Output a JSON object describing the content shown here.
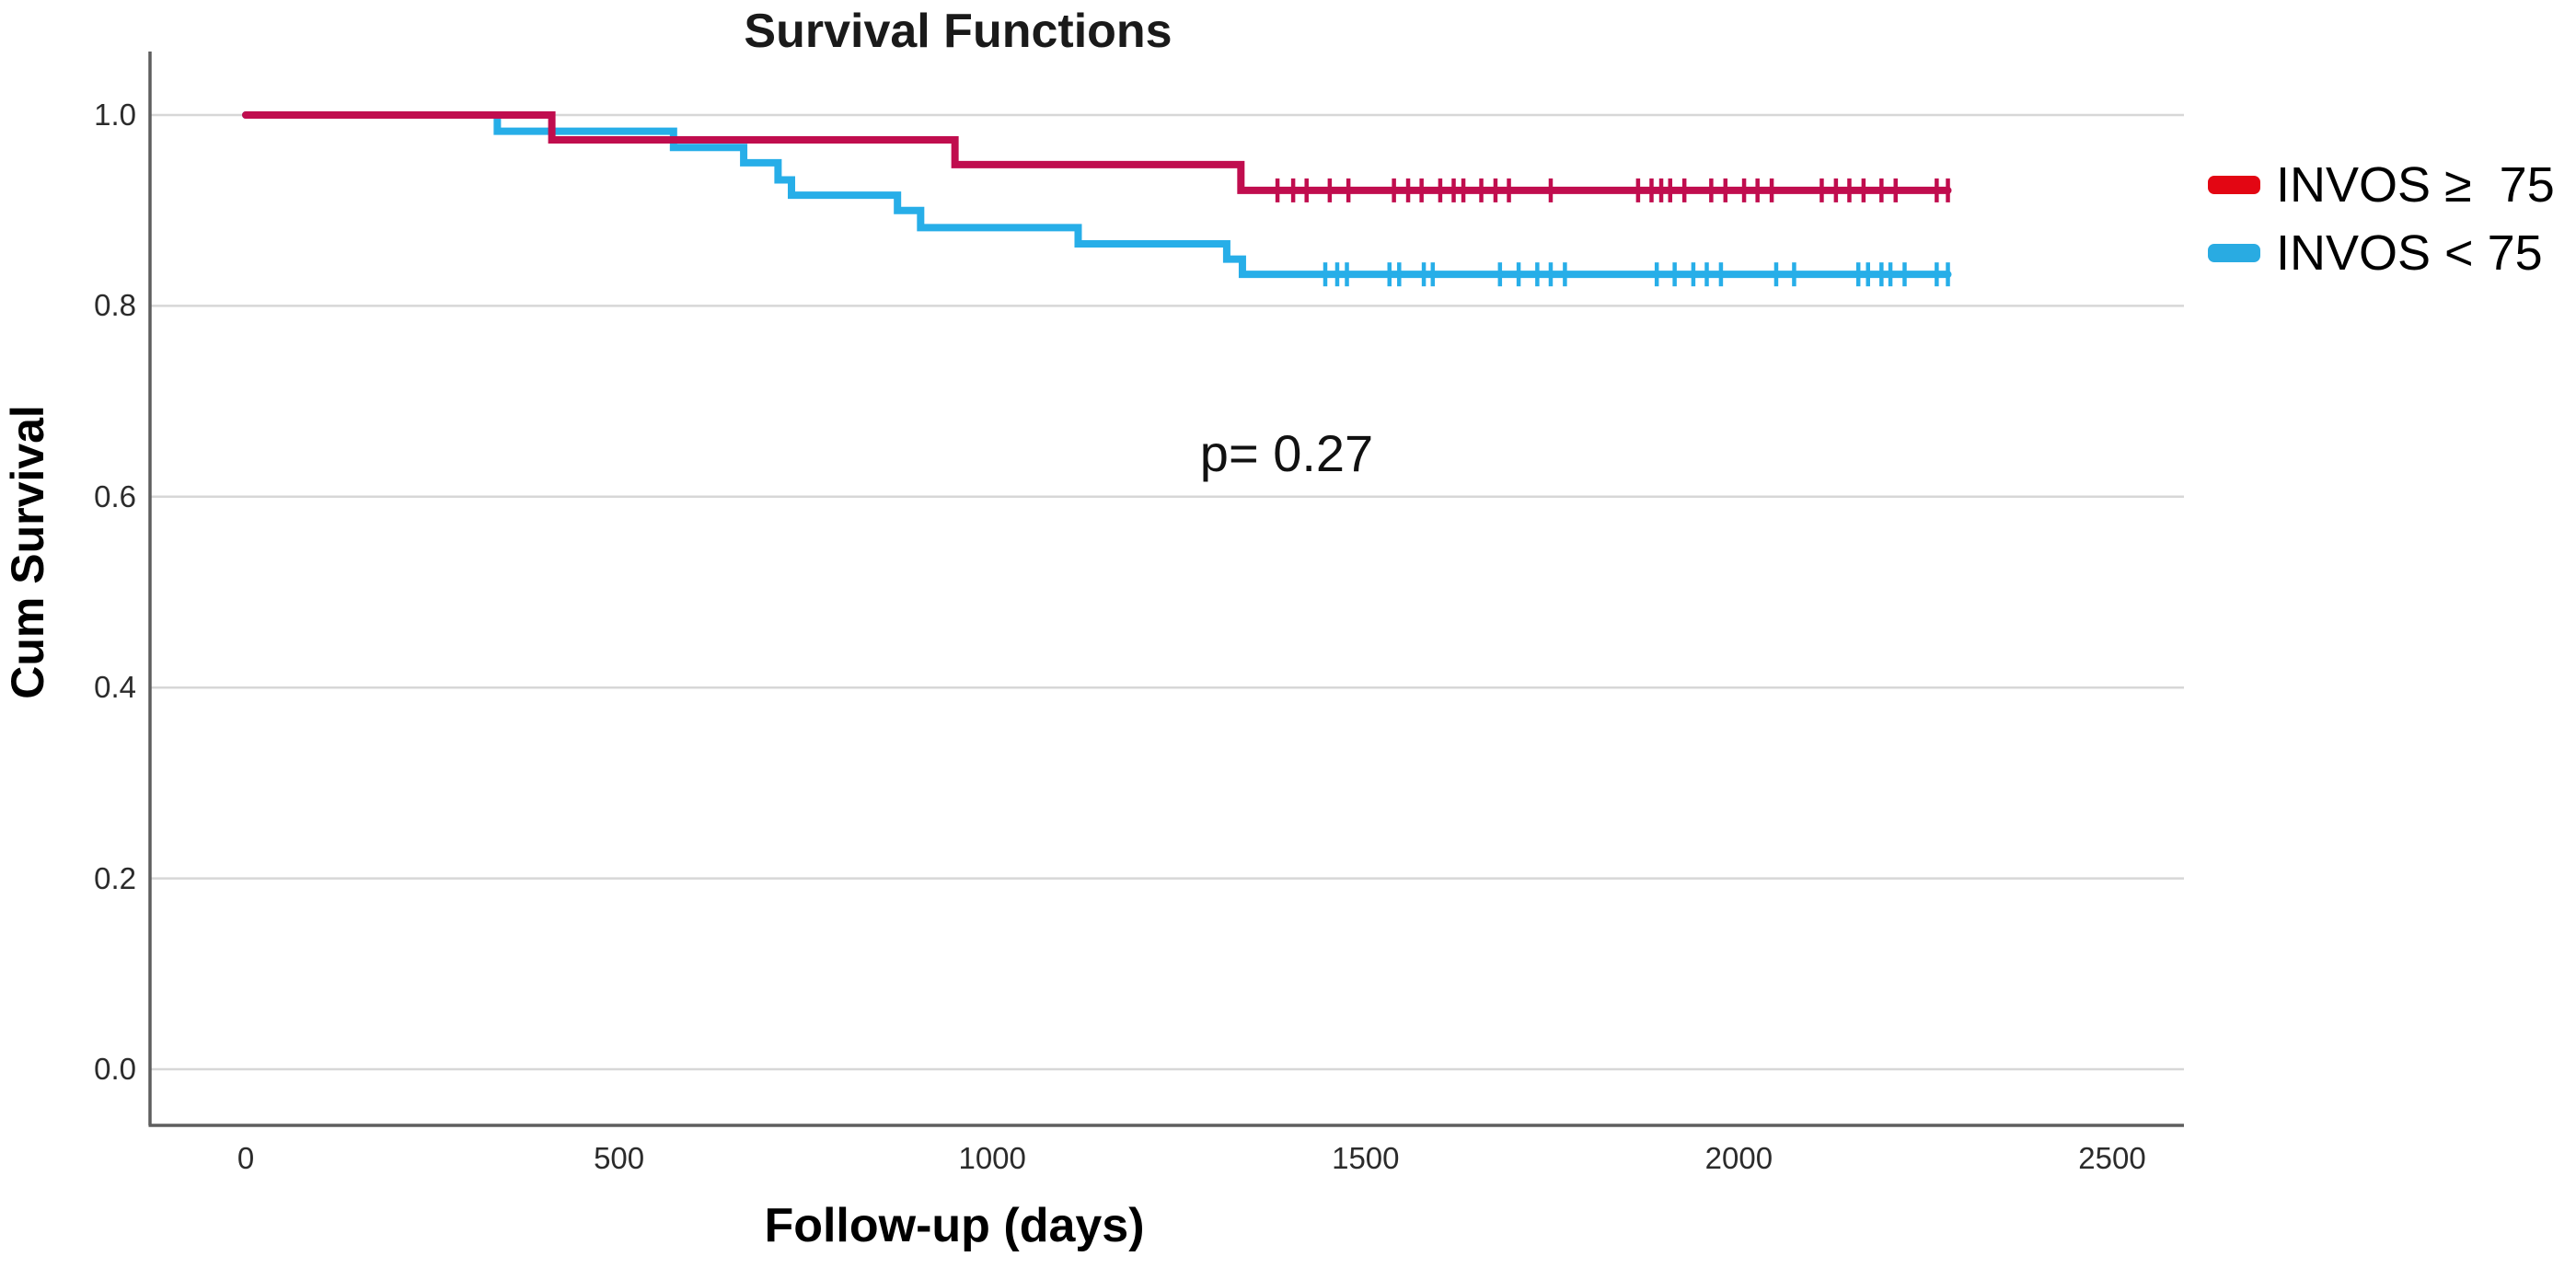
{
  "chart_data": {
    "type": "line",
    "subtype": "kaplan-meier-step",
    "title": "Survival Functions",
    "xlabel": "Follow-up (days)",
    "ylabel": "Cum Survival",
    "xlim": [
      0,
      2600
    ],
    "ylim": [
      0.0,
      1.0
    ],
    "x_ticks": [
      0,
      500,
      1000,
      1500,
      2000,
      2500
    ],
    "y_ticks": [
      {
        "label": "1.0",
        "value": 1.0
      },
      {
        "label": "0.8",
        "value": 0.8
      },
      {
        "label": "0.6",
        "value": 0.6
      },
      {
        "label": "0.4",
        "value": 0.4
      },
      {
        "label": "0.2",
        "value": 0.2
      },
      {
        "label": "0.0",
        "value": 0.0
      }
    ],
    "grid": "horizontal",
    "legend_position": "right",
    "annotation": {
      "text": "p= 0.27",
      "x_day": 1390,
      "y_value": 0.645
    },
    "colors": {
      "grid": "#D7D7D7",
      "axis": "#5E5E5E",
      "tick_text": "#2b2b2b"
    },
    "series": [
      {
        "name": "INVOS ≥  75",
        "color": "#C00D4E",
        "legend_color": "#E30613",
        "steps": [
          [
            0,
            1.0
          ],
          [
            410,
            0.974
          ],
          [
            950,
            0.948
          ],
          [
            1333,
            0.921
          ]
        ],
        "end_day": 2280,
        "censor_days": [
          1382,
          1403,
          1421,
          1452,
          1477,
          1538,
          1557,
          1575,
          1600,
          1618,
          1631,
          1655,
          1674,
          1692,
          1748,
          1865,
          1883,
          1896,
          1908,
          1927,
          1963,
          1982,
          2007,
          2025,
          2044,
          2111,
          2130,
          2148,
          2167,
          2191,
          2210,
          2265,
          2280
        ]
      },
      {
        "name": "INVOS < 75",
        "color": "#27AEE8",
        "legend_color": "#29ABE2",
        "steps": [
          [
            0,
            1.0
          ],
          [
            337,
            0.983
          ],
          [
            573,
            0.966
          ],
          [
            667,
            0.95
          ],
          [
            713,
            0.932
          ],
          [
            731,
            0.916
          ],
          [
            873,
            0.9
          ],
          [
            904,
            0.882
          ],
          [
            1115,
            0.865
          ],
          [
            1314,
            0.849
          ],
          [
            1335,
            0.833
          ]
        ],
        "end_day": 2280,
        "censor_days": [
          1446,
          1462,
          1475,
          1532,
          1545,
          1578,
          1590,
          1680,
          1705,
          1730,
          1748,
          1767,
          1890,
          1914,
          1939,
          1957,
          1976,
          2050,
          2074,
          2160,
          2173,
          2191,
          2203,
          2222,
          2265,
          2280
        ]
      }
    ]
  }
}
